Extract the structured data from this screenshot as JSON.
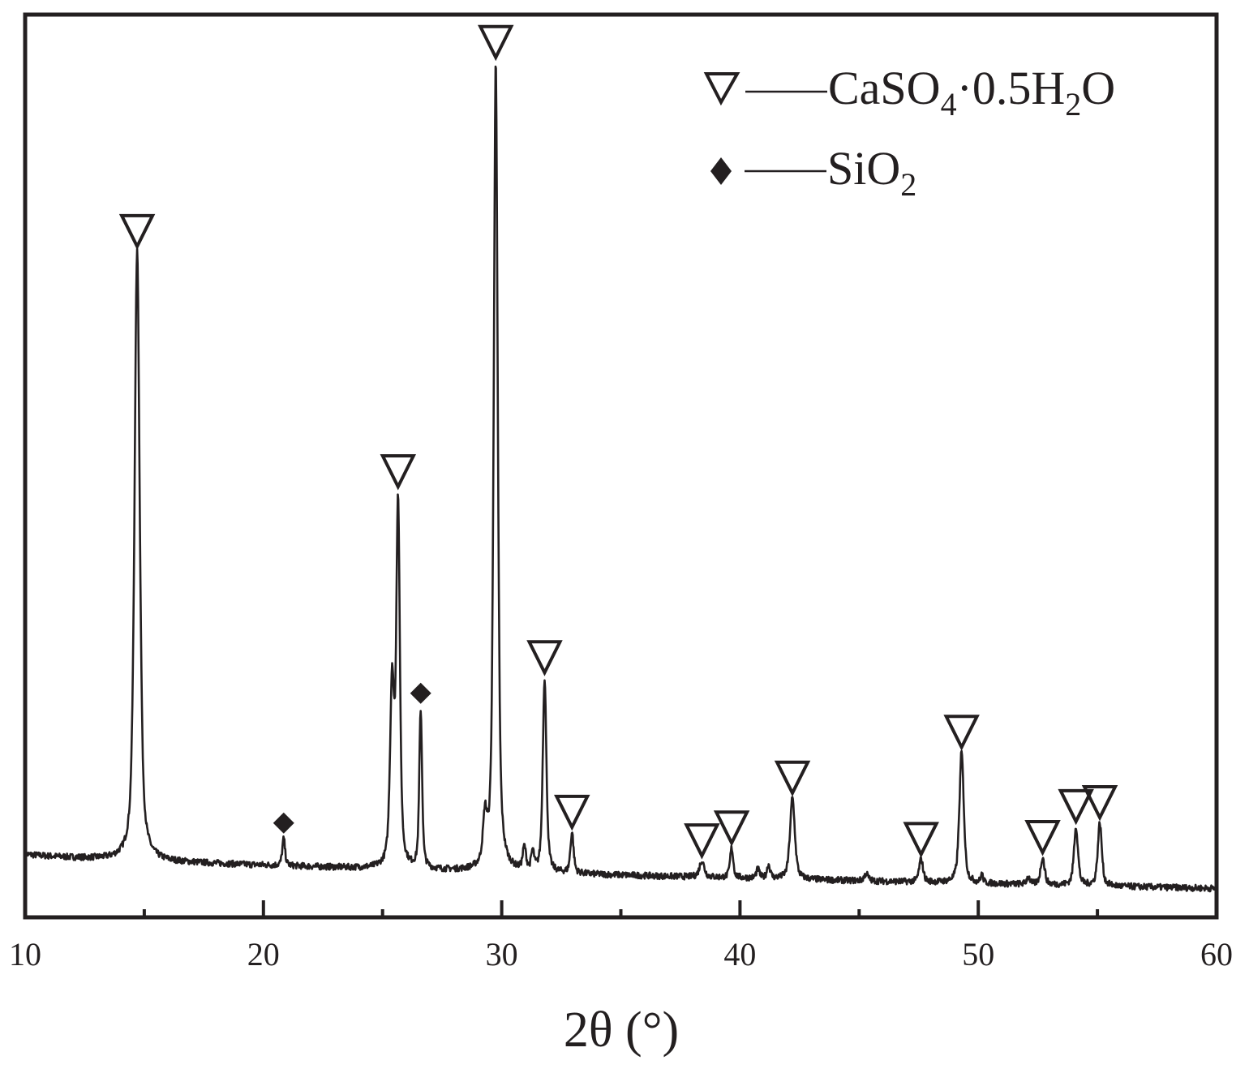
{
  "chart_data": {
    "type": "line",
    "title": "",
    "xlabel": "2θ (°)",
    "ylabel": "",
    "xlim": [
      10,
      60
    ],
    "ylim": [
      0,
      100
    ],
    "grid": false,
    "legend_position": "top-right",
    "x_ticks": [
      10,
      20,
      30,
      40,
      50,
      60
    ],
    "x_minor_ticks": [
      15,
      25,
      35,
      45,
      55
    ],
    "x_tick_labels": [
      "10",
      "20",
      "30",
      "40",
      "50",
      "60"
    ],
    "y_ticks_visible": false,
    "legend": [
      {
        "marker": "open-down-triangle",
        "label": "CaSO4·0.5H2O",
        "label_parts": [
          "CaSO",
          "4",
          "·0.5H",
          "2",
          "O"
        ]
      },
      {
        "marker": "filled-diamond",
        "label": "SiO2",
        "label_parts": [
          "SiO",
          "2"
        ]
      }
    ],
    "baseline": {
      "start": 7.0,
      "end": 3.2
    },
    "series": [
      {
        "name": "XRD pattern",
        "peaks": [
          {
            "two_theta": 14.7,
            "intensity": 67.5,
            "width": 0.13,
            "phase": "CaSO4·0.5H2O",
            "marked": true
          },
          {
            "two_theta": 20.85,
            "intensity": 3.0,
            "width": 0.07,
            "phase": "SiO2",
            "marked": true
          },
          {
            "two_theta": 25.4,
            "intensity": 20.0,
            "width": 0.1,
            "phase": "",
            "marked": false
          },
          {
            "two_theta": 25.65,
            "intensity": 40.0,
            "width": 0.09,
            "phase": "CaSO4·0.5H2O",
            "marked": true
          },
          {
            "two_theta": 26.6,
            "intensity": 17.5,
            "width": 0.07,
            "phase": "SiO2",
            "marked": true
          },
          {
            "two_theta": 29.3,
            "intensity": 5.0,
            "width": 0.1,
            "phase": "",
            "marked": false
          },
          {
            "two_theta": 29.75,
            "intensity": 89.5,
            "width": 0.1,
            "phase": "CaSO4·0.5H2O",
            "marked": true
          },
          {
            "two_theta": 30.95,
            "intensity": 2.5,
            "width": 0.08,
            "phase": "",
            "marked": false
          },
          {
            "two_theta": 31.3,
            "intensity": 2.0,
            "width": 0.07,
            "phase": "",
            "marked": false
          },
          {
            "two_theta": 31.8,
            "intensity": 21.5,
            "width": 0.09,
            "phase": "CaSO4·0.5H2O",
            "marked": true
          },
          {
            "two_theta": 32.95,
            "intensity": 4.5,
            "width": 0.08,
            "phase": "CaSO4·0.5H2O",
            "marked": true
          },
          {
            "two_theta": 38.4,
            "intensity": 1.8,
            "width": 0.12,
            "phase": "CaSO4·0.5H2O",
            "marked": true
          },
          {
            "two_theta": 39.65,
            "intensity": 3.3,
            "width": 0.08,
            "phase": "CaSO4·0.5H2O",
            "marked": true
          },
          {
            "two_theta": 40.75,
            "intensity": 1.0,
            "width": 0.08,
            "phase": "",
            "marked": false
          },
          {
            "two_theta": 41.2,
            "intensity": 1.5,
            "width": 0.08,
            "phase": "",
            "marked": false
          },
          {
            "two_theta": 42.2,
            "intensity": 9.0,
            "width": 0.12,
            "phase": "CaSO4·0.5H2O",
            "marked": true
          },
          {
            "two_theta": 45.3,
            "intensity": 0.8,
            "width": 0.1,
            "phase": "",
            "marked": false
          },
          {
            "two_theta": 47.6,
            "intensity": 2.5,
            "width": 0.1,
            "phase": "CaSO4·0.5H2O",
            "marked": true
          },
          {
            "two_theta": 49.3,
            "intensity": 14.5,
            "width": 0.11,
            "phase": "CaSO4·0.5H2O",
            "marked": true
          },
          {
            "two_theta": 50.15,
            "intensity": 0.9,
            "width": 0.06,
            "phase": "",
            "marked": false
          },
          {
            "two_theta": 52.1,
            "intensity": 0.8,
            "width": 0.08,
            "phase": "",
            "marked": false
          },
          {
            "two_theta": 52.7,
            "intensity": 3.0,
            "width": 0.1,
            "phase": "CaSO4·0.5H2O",
            "marked": true
          },
          {
            "two_theta": 54.1,
            "intensity": 6.5,
            "width": 0.1,
            "phase": "CaSO4·0.5H2O",
            "marked": true
          },
          {
            "two_theta": 55.1,
            "intensity": 7.0,
            "width": 0.1,
            "phase": "CaSO4·0.5H2O",
            "marked": true
          }
        ]
      }
    ],
    "annotations": [
      {
        "marker": "open-down-triangle",
        "two_theta": 14.7,
        "phase": "CaSO4·0.5H2O"
      },
      {
        "marker": "filled-diamond",
        "two_theta": 20.85,
        "phase": "SiO2"
      },
      {
        "marker": "open-down-triangle",
        "two_theta": 25.65,
        "phase": "CaSO4·0.5H2O"
      },
      {
        "marker": "filled-diamond",
        "two_theta": 26.6,
        "phase": "SiO2"
      },
      {
        "marker": "open-down-triangle",
        "two_theta": 29.75,
        "phase": "CaSO4·0.5H2O"
      },
      {
        "marker": "open-down-triangle",
        "two_theta": 31.8,
        "phase": "CaSO4·0.5H2O"
      },
      {
        "marker": "open-down-triangle",
        "two_theta": 32.95,
        "phase": "CaSO4·0.5H2O"
      },
      {
        "marker": "open-down-triangle",
        "two_theta": 38.4,
        "phase": "CaSO4·0.5H2O"
      },
      {
        "marker": "open-down-triangle",
        "two_theta": 39.65,
        "phase": "CaSO4·0.5H2O"
      },
      {
        "marker": "open-down-triangle",
        "two_theta": 42.2,
        "phase": "CaSO4·0.5H2O"
      },
      {
        "marker": "open-down-triangle",
        "two_theta": 47.6,
        "phase": "CaSO4·0.5H2O"
      },
      {
        "marker": "open-down-triangle",
        "two_theta": 49.3,
        "phase": "CaSO4·0.5H2O"
      },
      {
        "marker": "open-down-triangle",
        "two_theta": 52.7,
        "phase": "CaSO4·0.5H2O"
      },
      {
        "marker": "open-down-triangle",
        "two_theta": 54.1,
        "phase": "CaSO4·0.5H2O"
      },
      {
        "marker": "open-down-triangle",
        "two_theta": 55.1,
        "phase": "CaSO4·0.5H2O"
      }
    ],
    "colors": {
      "line": "#231f20",
      "frame": "#231f20",
      "background": "#ffffff"
    }
  }
}
